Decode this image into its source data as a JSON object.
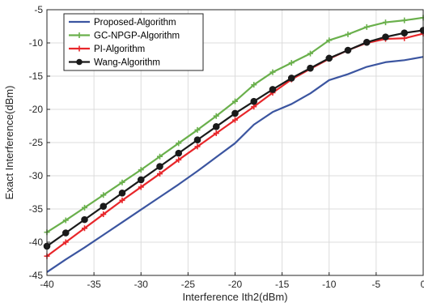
{
  "chart_data": {
    "type": "line",
    "title": "",
    "xlabel": "Interference Ith2(dBm)",
    "ylabel": "Exact Interference(dBm)",
    "xlim": [
      -40,
      0
    ],
    "ylim": [
      -45,
      -5
    ],
    "xticks": [
      -40,
      -35,
      -30,
      -25,
      -20,
      -15,
      -10,
      -5,
      0
    ],
    "yticks": [
      -45,
      -40,
      -35,
      -30,
      -25,
      -20,
      -15,
      -10,
      -5
    ],
    "xtick_labels": [
      "-40",
      "-35",
      "-30",
      "-25",
      "-20",
      "-15",
      "-10",
      "-5",
      "0"
    ],
    "ytick_labels": [
      "-45",
      "-40",
      "-35",
      "-30",
      "-25",
      "-20",
      "-15",
      "-10",
      "-5"
    ],
    "grid": true,
    "legend_position": "top-left",
    "series": [
      {
        "name": "Proposed-Algorithm",
        "color": "#3b55a0",
        "marker": "none",
        "x": [
          -40,
          -38,
          -36,
          -34,
          -32,
          -30,
          -28,
          -26,
          -24,
          -22,
          -20,
          -18,
          -16,
          -14,
          -12,
          -10,
          -8,
          -6,
          -4,
          -2,
          0
        ],
        "y": [
          -44.5,
          -42.6,
          -40.8,
          -38.9,
          -37.0,
          -35.1,
          -33.2,
          -31.3,
          -29.3,
          -27.2,
          -25.1,
          -22.3,
          -20.4,
          -19.2,
          -17.6,
          -15.6,
          -14.7,
          -13.6,
          -12.9,
          -12.6,
          -12.1
        ]
      },
      {
        "name": "GC-NPGP-Algorithm",
        "color": "#6ab04c",
        "marker": "plus",
        "x": [
          -40,
          -38,
          -36,
          -34,
          -32,
          -30,
          -28,
          -26,
          -24,
          -22,
          -20,
          -18,
          -16,
          -14,
          -12,
          -10,
          -8,
          -6,
          -4,
          -2,
          0
        ],
        "y": [
          -38.5,
          -36.7,
          -34.8,
          -32.9,
          -31.0,
          -29.1,
          -27.1,
          -25.1,
          -23.1,
          -21.0,
          -18.8,
          -16.3,
          -14.4,
          -13.0,
          -11.6,
          -9.6,
          -8.7,
          -7.6,
          -6.9,
          -6.6,
          -6.2
        ]
      },
      {
        "name": "PI-Algorithm",
        "color": "#e8262a",
        "marker": "plus",
        "x": [
          -40,
          -38,
          -36,
          -34,
          -32,
          -30,
          -28,
          -26,
          -24,
          -22,
          -20,
          -18,
          -16,
          -14,
          -12,
          -10,
          -8,
          -6,
          -4,
          -2,
          0
        ],
        "y": [
          -42.1,
          -40.0,
          -37.9,
          -35.8,
          -33.7,
          -31.7,
          -29.7,
          -27.6,
          -25.6,
          -23.6,
          -21.6,
          -19.6,
          -17.5,
          -15.5,
          -13.9,
          -12.4,
          -11.1,
          -10.0,
          -9.4,
          -9.3,
          -8.6
        ]
      },
      {
        "name": "Wang-Algorithm",
        "color": "#1a1a1a",
        "marker": "circle",
        "x": [
          -40,
          -38,
          -36,
          -34,
          -32,
          -30,
          -28,
          -26,
          -24,
          -22,
          -20,
          -18,
          -16,
          -14,
          -12,
          -10,
          -8,
          -6,
          -4,
          -2,
          0
        ],
        "y": [
          -40.6,
          -38.6,
          -36.6,
          -34.6,
          -32.6,
          -30.6,
          -28.6,
          -26.6,
          -24.6,
          -22.6,
          -20.6,
          -18.8,
          -17.0,
          -15.3,
          -13.8,
          -12.3,
          -11.1,
          -9.9,
          -9.1,
          -8.5,
          -8.1
        ]
      }
    ]
  }
}
